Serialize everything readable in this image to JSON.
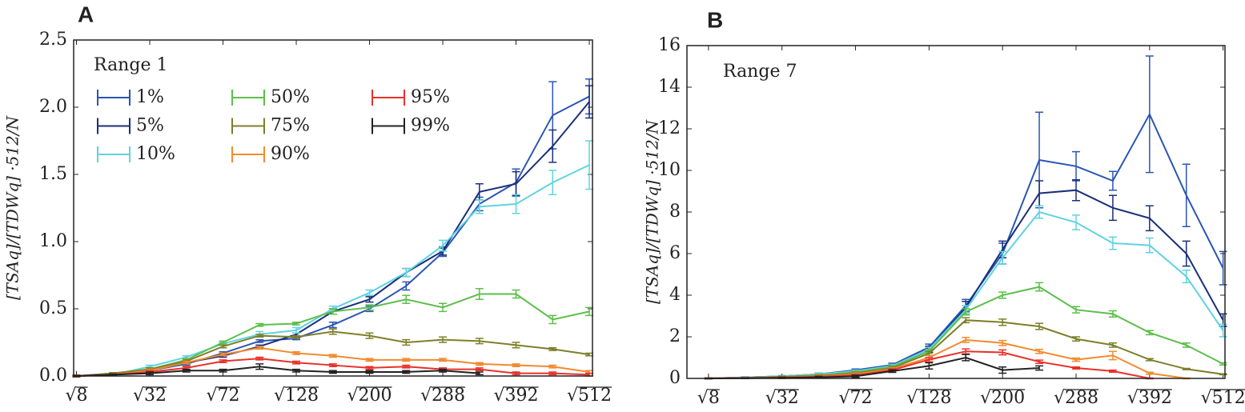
{
  "chart_data": [
    {
      "type": "line",
      "panel_label": "A",
      "annotation": "Range 1",
      "ylabel": "[TSAq]/[TDWq] ·512/N",
      "x": [
        2.828,
        4.243,
        5.657,
        7.071,
        8.485,
        9.899,
        11.314,
        12.728,
        14.142,
        15.556,
        16.971,
        18.385,
        19.799,
        21.213,
        22.627
      ],
      "xlim": [
        2.72,
        22.75
      ],
      "xticks": [
        {
          "value": 2.828,
          "label": "√8"
        },
        {
          "value": 5.657,
          "label": "√32"
        },
        {
          "value": 8.485,
          "label": "√72"
        },
        {
          "value": 11.314,
          "label": "√128"
        },
        {
          "value": 14.142,
          "label": "√200"
        },
        {
          "value": 16.971,
          "label": "√288"
        },
        {
          "value": 19.799,
          "label": "√392"
        },
        {
          "value": 22.627,
          "label": "√512"
        }
      ],
      "ylim": [
        0,
        2.5
      ],
      "yticks": [
        {
          "value": 0,
          "label": "0.0"
        },
        {
          "value": 0.5,
          "label": "0.5"
        },
        {
          "value": 1,
          "label": "1.0"
        },
        {
          "value": 1.5,
          "label": "1.5"
        },
        {
          "value": 2,
          "label": "2.0"
        },
        {
          "value": 2.5,
          "label": "2.5"
        }
      ],
      "legend": "upper left",
      "series": [
        {
          "name": "1%",
          "color": "#2b55b5",
          "values": [
            0,
            0.01,
            0.04,
            0.09,
            0.17,
            0.26,
            0.28,
            0.38,
            0.5,
            0.67,
            0.92,
            1.28,
            1.44,
            1.94,
            2.08
          ],
          "errors": [
            0.005,
            0.005,
            0.01,
            0.01,
            0.01,
            0.01,
            0.01,
            0.02,
            0.02,
            0.03,
            0.03,
            0.05,
            0.1,
            0.25,
            0.13
          ]
        },
        {
          "name": "5%",
          "color": "#1a2f7a",
          "values": [
            0,
            0.01,
            0.05,
            0.1,
            0.15,
            0.22,
            0.31,
            0.48,
            0.57,
            0.77,
            0.93,
            1.37,
            1.43,
            1.71,
            2.04
          ],
          "errors": [
            0.005,
            0.005,
            0.01,
            0.01,
            0.01,
            0.01,
            0.01,
            0.02,
            0.02,
            0.03,
            0.03,
            0.06,
            0.09,
            0.12,
            0.12
          ]
        },
        {
          "name": "10%",
          "color": "#5fd3e0",
          "values": [
            0,
            0.01,
            0.07,
            0.14,
            0.24,
            0.31,
            0.34,
            0.5,
            0.62,
            0.77,
            0.97,
            1.26,
            1.28,
            1.44,
            1.57
          ],
          "errors": [
            0.005,
            0.005,
            0.01,
            0.01,
            0.01,
            0.02,
            0.02,
            0.02,
            0.02,
            0.03,
            0.04,
            0.05,
            0.07,
            0.09,
            0.18
          ]
        },
        {
          "name": "50%",
          "color": "#5cbf4a",
          "values": [
            0,
            0.02,
            0.05,
            0.12,
            0.25,
            0.38,
            0.39,
            0.48,
            0.51,
            0.57,
            0.51,
            0.61,
            0.61,
            0.42,
            0.48
          ],
          "errors": [
            0.005,
            0.005,
            0.01,
            0.01,
            0.01,
            0.01,
            0.01,
            0.02,
            0.02,
            0.03,
            0.03,
            0.04,
            0.03,
            0.03,
            0.03
          ]
        },
        {
          "name": "75%",
          "color": "#7e7f2a",
          "values": [
            0,
            0.02,
            0.05,
            0.11,
            0.22,
            0.3,
            0.29,
            0.33,
            0.3,
            0.25,
            0.27,
            0.26,
            0.23,
            0.2,
            0.16
          ],
          "errors": [
            0.005,
            0.005,
            0.01,
            0.01,
            0.01,
            0.01,
            0.01,
            0.02,
            0.02,
            0.02,
            0.02,
            0.02,
            0.02,
            0.01,
            0.01
          ]
        },
        {
          "name": "90%",
          "color": "#f28a2e",
          "values": [
            0,
            0.01,
            0.04,
            0.1,
            0.16,
            0.21,
            0.17,
            0.15,
            0.12,
            0.12,
            0.12,
            0.09,
            0.08,
            0.07,
            0.03
          ],
          "errors": [
            0.005,
            0.005,
            0.01,
            0.01,
            0.01,
            0.01,
            0.01,
            0.01,
            0.01,
            0.01,
            0.01,
            0.01,
            0.01,
            0.01,
            0.01
          ]
        },
        {
          "name": "95%",
          "color": "#e8312a",
          "values": [
            0,
            0.01,
            0.03,
            0.06,
            0.11,
            0.13,
            0.1,
            0.08,
            0.06,
            0.07,
            0.05,
            0.05,
            0.02,
            0.02,
            0.01
          ],
          "errors": [
            0.005,
            0.005,
            0.01,
            0.01,
            0.01,
            0.01,
            0.01,
            0.01,
            0.01,
            0.01,
            0.01,
            0.01,
            0.01,
            0.01,
            0.01
          ]
        },
        {
          "name": "99%",
          "color": "#222222",
          "values": [
            0,
            0.01,
            0.02,
            0.04,
            0.04,
            0.07,
            0.04,
            0.03,
            0.03,
            0.03,
            0.04,
            0.02,
            null,
            null,
            null
          ],
          "errors": [
            0.005,
            0.005,
            0.01,
            0.01,
            0.01,
            0.02,
            0.01,
            0.01,
            0.01,
            0.01,
            0.01,
            0.01,
            null,
            null,
            null
          ]
        }
      ]
    },
    {
      "type": "line",
      "panel_label": "B",
      "annotation": "Range 7",
      "ylabel": "[TSAq]/[TDWq] ·512/N",
      "x": [
        2.828,
        4.243,
        5.657,
        7.071,
        8.485,
        9.899,
        11.314,
        12.728,
        14.142,
        15.556,
        16.971,
        18.385,
        19.799,
        21.213,
        22.627
      ],
      "xlim": [
        2.0,
        22.7
      ],
      "xticks": [
        {
          "value": 2.828,
          "label": "√8"
        },
        {
          "value": 5.657,
          "label": "√32"
        },
        {
          "value": 8.485,
          "label": "√72"
        },
        {
          "value": 11.314,
          "label": "√128"
        },
        {
          "value": 14.142,
          "label": "√200"
        },
        {
          "value": 16.971,
          "label": "√288"
        },
        {
          "value": 19.799,
          "label": "√392"
        },
        {
          "value": 22.627,
          "label": "√512"
        }
      ],
      "ylim": [
        0,
        16
      ],
      "yticks": [
        0,
        2,
        4,
        6,
        8,
        10,
        12,
        14,
        16
      ],
      "series": [
        {
          "color": "#2b55b5",
          "values": [
            0,
            0.05,
            0.1,
            0.2,
            0.4,
            0.65,
            1.5,
            3.5,
            6.0,
            10.5,
            10.2,
            9.5,
            12.7,
            8.8,
            5.3
          ],
          "errors": [
            0.02,
            0.02,
            0.03,
            0.05,
            0.05,
            0.08,
            0.15,
            0.3,
            0.5,
            2.3,
            0.7,
            0.45,
            2.8,
            1.5,
            0.8
          ]
        },
        {
          "color": "#1a2f7a",
          "values": [
            0,
            0.05,
            0.1,
            0.2,
            0.35,
            0.6,
            1.4,
            3.4,
            6.2,
            8.9,
            9.05,
            8.2,
            7.7,
            6.0,
            2.8
          ],
          "errors": [
            0.02,
            0.02,
            0.03,
            0.05,
            0.05,
            0.08,
            0.15,
            0.3,
            0.4,
            0.6,
            0.5,
            0.6,
            0.6,
            0.6,
            0.3
          ]
        },
        {
          "color": "#5fd3e0",
          "values": [
            0,
            0.05,
            0.1,
            0.2,
            0.35,
            0.6,
            1.4,
            3.3,
            5.8,
            8.0,
            7.5,
            6.5,
            6.4,
            4.9,
            2.3
          ],
          "errors": [
            0.02,
            0.02,
            0.03,
            0.05,
            0.05,
            0.08,
            0.1,
            0.2,
            0.3,
            0.3,
            0.35,
            0.3,
            0.35,
            0.3,
            0.3
          ]
        },
        {
          "color": "#5cbf4a",
          "values": [
            0,
            0.03,
            0.08,
            0.15,
            0.3,
            0.55,
            1.3,
            3.2,
            4.0,
            4.4,
            3.3,
            3.1,
            2.2,
            1.6,
            0.7
          ],
          "errors": [
            0.02,
            0.02,
            0.03,
            0.05,
            0.05,
            0.06,
            0.1,
            0.15,
            0.15,
            0.2,
            0.15,
            0.15,
            0.1,
            0.1,
            0.05
          ]
        },
        {
          "color": "#7e7f2a",
          "values": [
            0,
            0.03,
            0.07,
            0.12,
            0.25,
            0.5,
            1.2,
            2.8,
            2.7,
            2.5,
            1.9,
            1.6,
            0.9,
            0.45,
            0.2
          ],
          "errors": [
            0.02,
            0.02,
            0.03,
            0.04,
            0.05,
            0.06,
            0.1,
            0.12,
            0.15,
            0.15,
            0.1,
            0.1,
            0.05,
            0.03,
            0.02
          ]
        },
        {
          "color": "#f28a2e",
          "values": [
            0,
            0.02,
            0.05,
            0.1,
            0.2,
            0.45,
            1.0,
            1.85,
            1.7,
            1.3,
            0.9,
            1.1,
            0.25,
            0.0,
            null
          ],
          "errors": [
            0.02,
            0.02,
            0.03,
            0.04,
            0.05,
            0.06,
            0.1,
            0.12,
            0.12,
            0.1,
            0.08,
            0.2,
            0.05,
            0.02,
            null
          ]
        },
        {
          "color": "#e8312a",
          "values": [
            0,
            0.02,
            0.04,
            0.08,
            0.15,
            0.4,
            0.9,
            1.3,
            1.25,
            0.8,
            0.5,
            0.35,
            0.0,
            null,
            null
          ],
          "errors": [
            0.02,
            0.02,
            0.03,
            0.04,
            0.05,
            0.06,
            0.1,
            0.12,
            0.12,
            0.08,
            0.05,
            0.05,
            0.02,
            null,
            null
          ]
        },
        {
          "color": "#222222",
          "values": [
            0,
            0.01,
            0.03,
            0.05,
            0.1,
            0.35,
            0.6,
            1.0,
            0.4,
            0.5,
            null,
            null,
            null,
            null,
            null
          ],
          "errors": [
            0.02,
            0.02,
            0.03,
            0.04,
            0.05,
            0.06,
            0.15,
            0.15,
            0.15,
            0.1,
            null,
            null,
            null,
            null,
            null
          ]
        }
      ]
    }
  ]
}
